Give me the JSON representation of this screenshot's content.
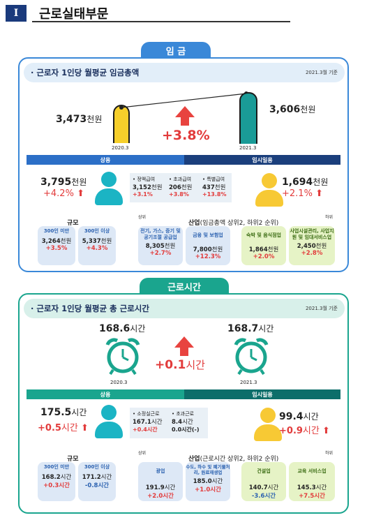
{
  "header": {
    "numeral": "I",
    "title": "근로실태부문"
  },
  "wage": {
    "tab": "임 금",
    "headline": "근로자 1인당 월평균 임금총액",
    "date_note": "2021.3월 기준",
    "prev": {
      "value": "3,473",
      "unit": "천원",
      "label": "2020.3"
    },
    "curr": {
      "value": "3,606",
      "unit": "천원",
      "label": "2021.3"
    },
    "change": "+3.8%",
    "regular": {
      "label": "상용",
      "value": "3,795",
      "unit": "천원",
      "change": "+4.2%"
    },
    "temporary": {
      "label": "임시일용",
      "value": "1,694",
      "unit": "천원",
      "change": "+2.1%"
    },
    "breakdown": [
      {
        "name": "• 정액급여",
        "value": "3,152",
        "unit": "천원",
        "change": "+3.1%"
      },
      {
        "name": "• 초과급여",
        "value": "206",
        "unit": "천원",
        "change": "+3.8%"
      },
      {
        "name": "• 특별급여",
        "value": "437",
        "unit": "천원",
        "change": "+13.8%"
      }
    ],
    "size_title": "규모",
    "size": [
      {
        "name": "300인 미만",
        "value": "3,264",
        "unit": "천원",
        "change": "+3.5%"
      },
      {
        "name": "300인 이상",
        "value": "5,337",
        "unit": "천원",
        "change": "+4.3%"
      }
    ],
    "industry_title": "산업",
    "industry_sub": "(임금총액 상위2, 하위2 순위)",
    "top_label": "상위",
    "bottom_label": "하위",
    "industry_top": [
      {
        "name": "전기, 가스, 증기 및 공기조절 공급업",
        "value": "8,305",
        "unit": "천원",
        "change": "+2.7%"
      },
      {
        "name": "금융 및 보험업",
        "value": "7,800",
        "unit": "천원",
        "change": "+12.3%"
      }
    ],
    "industry_bottom": [
      {
        "name": "숙박 및 음식점업",
        "value": "1,864",
        "unit": "천원",
        "change": "+2.0%"
      },
      {
        "name": "사업시설관리, 사업지원 및 임대서비스업",
        "value": "2,450",
        "unit": "천원",
        "change": "+2.8%"
      }
    ]
  },
  "hours": {
    "tab": "근로시간",
    "headline": "근로자 1인당 월평균 총 근로시간",
    "date_note": "2021.3월 기준",
    "prev": {
      "value": "168.6",
      "unit": "시간",
      "label": "2020.3"
    },
    "curr": {
      "value": "168.7",
      "unit": "시간",
      "label": "2021.3"
    },
    "change": "+0.1",
    "change_unit": "시간",
    "regular": {
      "label": "상용",
      "value": "175.5",
      "unit": "시간",
      "change": "+0.5",
      "cunit": "시간"
    },
    "temporary": {
      "label": "임시일용",
      "value": "99.4",
      "unit": "시간",
      "change": "+0.9",
      "cunit": "시간"
    },
    "breakdown": [
      {
        "name": "• 소정실근로",
        "value": "167.1",
        "unit": "시간",
        "change": "+0.4시간"
      },
      {
        "name": "• 초과근로",
        "value": "8.4",
        "unit": "시간",
        "change": "0.0시간(-)"
      }
    ],
    "size_title": "규모",
    "size": [
      {
        "name": "300인 미만",
        "value": "168.2",
        "unit": "시간",
        "change": "+0.3시간"
      },
      {
        "name": "300인 이상",
        "value": "171.2",
        "unit": "시간",
        "change": "-0.8시간"
      }
    ],
    "industry_title": "산업",
    "industry_sub": "(근로시간 상위2, 하위2 순위)",
    "top_label": "상위",
    "bottom_label": "하위",
    "industry_top": [
      {
        "name": "광업",
        "value": "191.9",
        "unit": "시간",
        "change": "+2.0시간"
      },
      {
        "name": "수도, 하수 및 폐기물처리, 원료재생업",
        "value": "185.0",
        "unit": "시간",
        "change": "+1.0시간"
      }
    ],
    "industry_bottom": [
      {
        "name": "건설업",
        "value": "140.7",
        "unit": "시간",
        "change": "-3.6시간"
      },
      {
        "name": "교육 서비스업",
        "value": "145.3",
        "unit": "시간",
        "change": "+7.5시간"
      }
    ]
  }
}
